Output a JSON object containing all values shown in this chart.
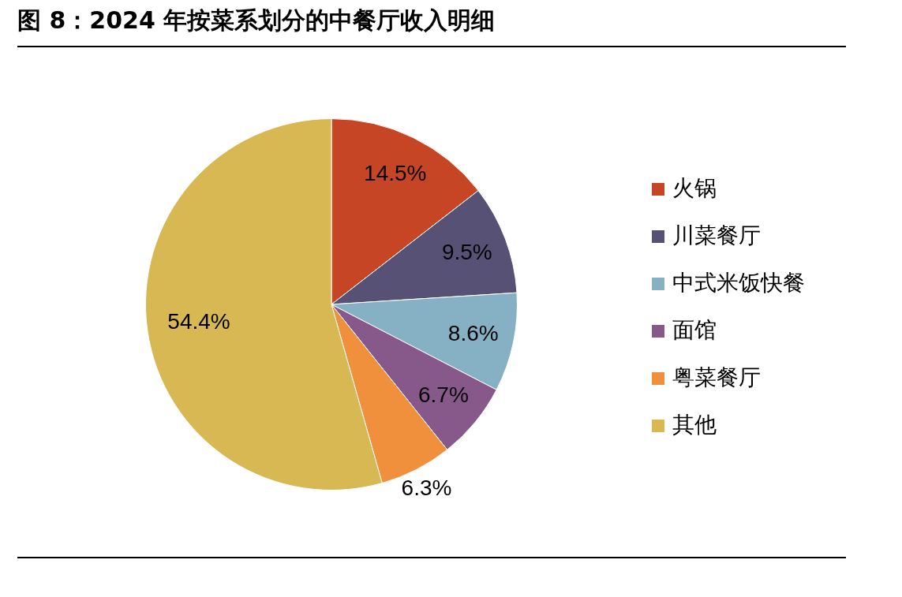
{
  "chart_data": {
    "type": "pie",
    "title": "图 8：2024 年按菜系划分的中餐厅收入明细",
    "categories": [
      "火锅",
      "川菜餐厅",
      "中式米饭快餐",
      "面馆",
      "粤菜餐厅",
      "其他"
    ],
    "values": [
      14.5,
      9.5,
      8.6,
      6.7,
      6.3,
      54.4
    ],
    "colors": [
      "#c64525",
      "#575175",
      "#86b0c4",
      "#87588a",
      "#f08f3c",
      "#d8b852"
    ],
    "value_labels": [
      "14.5%",
      "9.5%",
      "8.6%",
      "6.7%",
      "6.3%",
      "54.4%"
    ],
    "legend": "right"
  }
}
